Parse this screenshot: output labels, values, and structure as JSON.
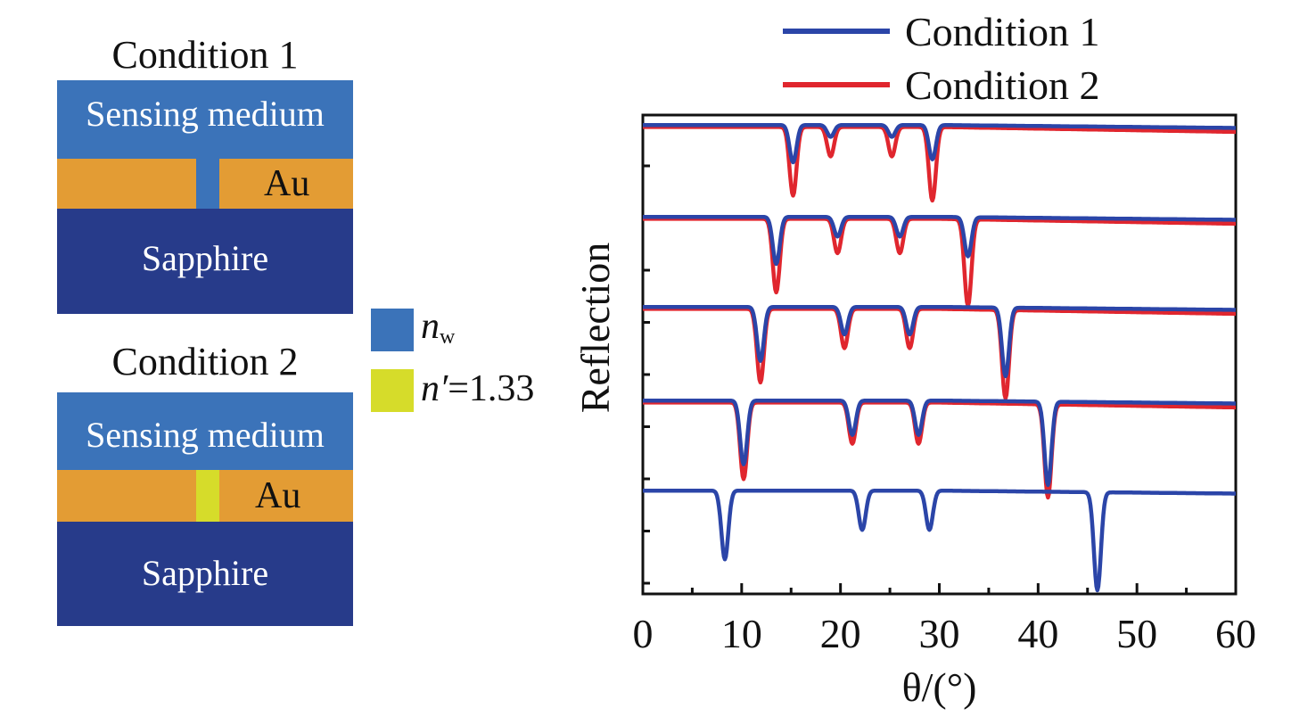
{
  "left_panel": {
    "condition1": {
      "title": "Condition 1",
      "medium_label": "Sensing medium",
      "au_label": "Au",
      "substrate_label": "Sapphire"
    },
    "condition2": {
      "title": "Condition 2",
      "medium_label": "Sensing medium",
      "au_label": "Au",
      "substrate_label": "Sapphire"
    },
    "key": {
      "nw_symbol": "n",
      "nw_subscript": "w",
      "nprime_symbol": "n′",
      "nprime_value": "=1.33"
    },
    "colors": {
      "medium": "#3b73b9",
      "gold": "#e39c34",
      "sapphire": "#273b8a",
      "filler": "#d6dc2a"
    }
  },
  "chart_data": {
    "type": "line",
    "title": "",
    "xlabel": "θ/(°)",
    "ylabel": "Reflection",
    "xlim": [
      0,
      60
    ],
    "x_ticks": [
      0,
      10,
      20,
      30,
      40,
      50,
      60
    ],
    "y_ticks_labeled": false,
    "legend": {
      "placement": "top-right",
      "entries": [
        "Condition 1",
        "Condition 2"
      ]
    },
    "colors": {
      "Condition 1": "#2b45a8",
      "Condition 2": "#e0262e"
    },
    "note_offsets": "curves are stacked vertically; y values are relative reflection within each trace",
    "traces": [
      {
        "series": [
          {
            "name": "Condition 1",
            "baseline": 0.98,
            "end": 0.95,
            "dips": [
              {
                "x": 15.2,
                "depth": 0.38
              },
              {
                "x": 19.0,
                "depth": 0.12
              },
              {
                "x": 25.2,
                "depth": 0.12
              },
              {
                "x": 29.3,
                "depth": 0.35
              }
            ]
          },
          {
            "name": "Condition 2",
            "baseline": 0.96,
            "end": 0.91,
            "dips": [
              {
                "x": 15.2,
                "depth": 0.7
              },
              {
                "x": 19.0,
                "depth": 0.3
              },
              {
                "x": 25.2,
                "depth": 0.3
              },
              {
                "x": 29.3,
                "depth": 0.75
              }
            ]
          }
        ]
      },
      {
        "series": [
          {
            "name": "Condition 1",
            "baseline": 0.98,
            "end": 0.95,
            "dips": [
              {
                "x": 13.5,
                "depth": 0.48
              },
              {
                "x": 19.7,
                "depth": 0.2
              },
              {
                "x": 26.0,
                "depth": 0.2
              },
              {
                "x": 32.9,
                "depth": 0.4
              }
            ]
          },
          {
            "name": "Condition 2",
            "baseline": 0.96,
            "end": 0.91,
            "dips": [
              {
                "x": 13.5,
                "depth": 0.75
              },
              {
                "x": 19.7,
                "depth": 0.35
              },
              {
                "x": 26.0,
                "depth": 0.35
              },
              {
                "x": 32.9,
                "depth": 0.88
              }
            ]
          }
        ]
      },
      {
        "series": [
          {
            "name": "Condition 1",
            "baseline": 0.98,
            "end": 0.95,
            "dips": [
              {
                "x": 11.9,
                "depth": 0.55
              },
              {
                "x": 20.4,
                "depth": 0.28
              },
              {
                "x": 27.0,
                "depth": 0.28
              },
              {
                "x": 36.7,
                "depth": 0.7
              }
            ]
          },
          {
            "name": "Condition 2",
            "baseline": 0.96,
            "end": 0.91,
            "dips": [
              {
                "x": 11.9,
                "depth": 0.75
              },
              {
                "x": 20.4,
                "depth": 0.4
              },
              {
                "x": 27.0,
                "depth": 0.4
              },
              {
                "x": 36.7,
                "depth": 0.9
              }
            ]
          }
        ]
      },
      {
        "series": [
          {
            "name": "Condition 1",
            "baseline": 0.98,
            "end": 0.95,
            "dips": [
              {
                "x": 10.2,
                "depth": 0.65
              },
              {
                "x": 21.2,
                "depth": 0.35
              },
              {
                "x": 27.9,
                "depth": 0.35
              },
              {
                "x": 41.0,
                "depth": 0.85
              }
            ]
          },
          {
            "name": "Condition 2",
            "baseline": 0.96,
            "end": 0.91,
            "dips": [
              {
                "x": 10.2,
                "depth": 0.78
              },
              {
                "x": 21.2,
                "depth": 0.42
              },
              {
                "x": 27.9,
                "depth": 0.42
              },
              {
                "x": 41.0,
                "depth": 0.95
              }
            ]
          }
        ]
      },
      {
        "series": [
          {
            "name": "Condition 1",
            "baseline": 0.98,
            "end": 0.95,
            "dips": [
              {
                "x": 8.3,
                "depth": 0.7
              },
              {
                "x": 22.2,
                "depth": 0.4
              },
              {
                "x": 29.0,
                "depth": 0.4
              },
              {
                "x": 46.0,
                "depth": 1.0
              }
            ]
          }
        ]
      }
    ]
  }
}
